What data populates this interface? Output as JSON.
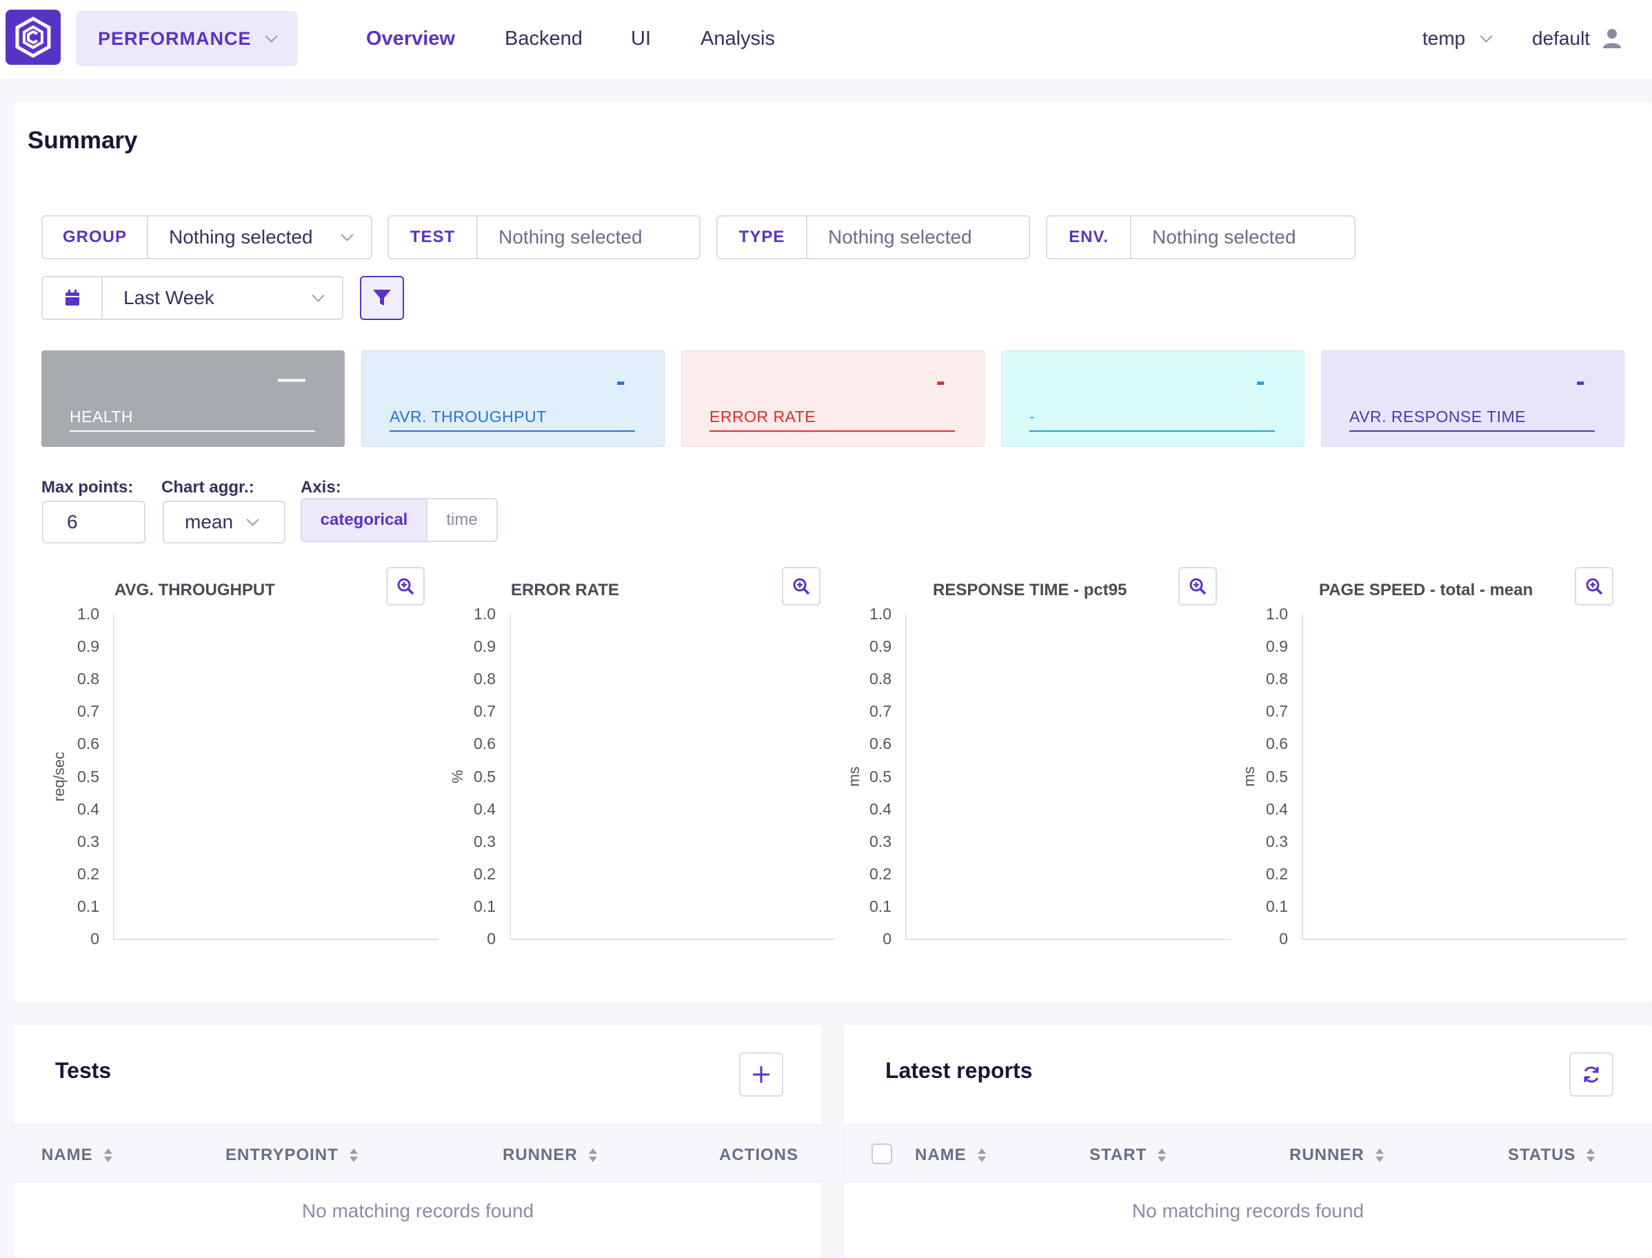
{
  "nav": {
    "project": "PERFORMANCE",
    "tabs": [
      "Overview",
      "Backend",
      "UI",
      "Analysis"
    ],
    "active_tab": "Overview",
    "mode": "temp",
    "user": "default"
  },
  "summary": {
    "title": "Summary",
    "filters": {
      "group": {
        "label": "GROUP",
        "value": "Nothing selected"
      },
      "test": {
        "label": "TEST",
        "value": "Nothing selected"
      },
      "type": {
        "label": "TYPE",
        "value": "Nothing selected"
      },
      "env": {
        "label": "ENV.",
        "value": "Nothing selected"
      },
      "date_range": "Last Week"
    },
    "metrics": [
      {
        "label": "HEALTH",
        "value": "—",
        "color": "#ffffff",
        "bg": "#a7abb0"
      },
      {
        "label": "AVR. THROUGHPUT",
        "value": "-",
        "color": "#2f6fd1",
        "bg": "#e1effc"
      },
      {
        "label": "ERROR RATE",
        "value": "-",
        "color": "#d5312a",
        "bg": "#fdecec"
      },
      {
        "label": "-",
        "value": "-",
        "color": "#2a9fd8",
        "bg": "#d9fafa"
      },
      {
        "label": "AVR. RESPONSE TIME",
        "value": "-",
        "color": "#4b3aa6",
        "bg": "#e8e5fb"
      }
    ],
    "controls": {
      "max_points_label": "Max points:",
      "max_points": "6",
      "aggr_label": "Chart aggr.:",
      "aggr": "mean",
      "axis_label": "Axis:",
      "axis_options": [
        "categorical",
        "time"
      ],
      "axis_selected": "categorical"
    }
  },
  "charts_y_ticks": [
    "1.0",
    "0.9",
    "0.8",
    "0.7",
    "0.6",
    "0.5",
    "0.4",
    "0.3",
    "0.2",
    "0.1",
    "0"
  ],
  "chart_data": [
    {
      "type": "line",
      "title": "AVG. THROUGHPUT",
      "ylabel": "req/sec",
      "xlabel": "",
      "ylim": [
        0,
        1.0
      ],
      "series": []
    },
    {
      "type": "line",
      "title": "ERROR RATE",
      "ylabel": "%",
      "xlabel": "",
      "ylim": [
        0,
        1.0
      ],
      "series": []
    },
    {
      "type": "line",
      "title": "RESPONSE TIME - pct95",
      "ylabel": "ms",
      "xlabel": "",
      "ylim": [
        0,
        1.0
      ],
      "series": []
    },
    {
      "type": "line",
      "title": "PAGE SPEED - total - mean",
      "ylabel": "ms",
      "xlabel": "",
      "ylim": [
        0,
        1.0
      ],
      "series": []
    }
  ],
  "tests": {
    "title": "Tests",
    "columns": [
      "NAME",
      "ENTRYPOINT",
      "RUNNER",
      "ACTIONS"
    ],
    "empty": "No matching records found"
  },
  "reports": {
    "title": "Latest reports",
    "columns": [
      "NAME",
      "START",
      "RUNNER",
      "STATUS"
    ],
    "empty": "No matching records found"
  },
  "colors": {
    "accent": "#5933c6"
  }
}
